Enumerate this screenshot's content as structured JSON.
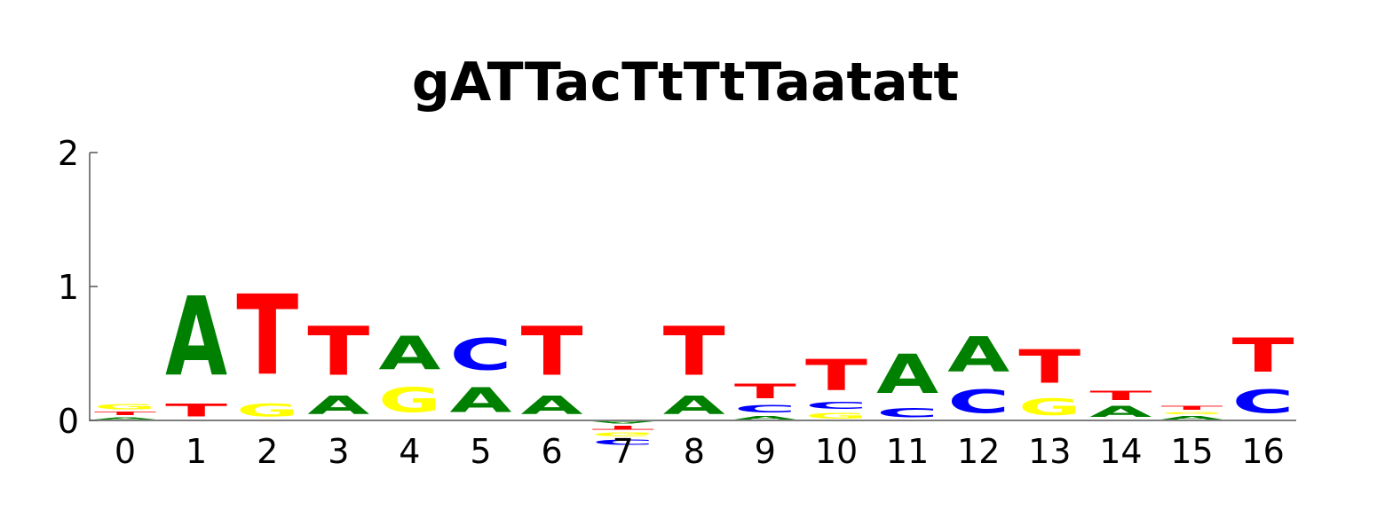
{
  "chart_data": {
    "type": "sequence-logo",
    "title": "gATTacTtTtTaatatt",
    "xlabel": "",
    "ylabel": "",
    "ylim": [
      0,
      2
    ],
    "yticks": [
      0,
      1,
      2
    ],
    "grid": false,
    "colors": {
      "A": "#008000",
      "C": "#0000ff",
      "G": "#ffff00",
      "T": "#ff0000"
    },
    "positions": [
      {
        "label": "0",
        "stack": [
          {
            "base": "A",
            "height": 0.03
          },
          {
            "base": "T",
            "height": 0.04
          },
          {
            "base": "G",
            "height": 0.06
          }
        ]
      },
      {
        "label": "1",
        "stack": [
          {
            "base": "T",
            "height": 0.15
          },
          {
            "base": "A",
            "height": 0.95
          }
        ]
      },
      {
        "label": "2",
        "stack": [
          {
            "base": "G",
            "height": 0.15
          },
          {
            "base": "T",
            "height": 0.96
          }
        ]
      },
      {
        "label": "3",
        "stack": [
          {
            "base": "A",
            "height": 0.22
          },
          {
            "base": "T",
            "height": 0.59
          }
        ]
      },
      {
        "label": "4",
        "stack": [
          {
            "base": "G",
            "height": 0.3
          },
          {
            "base": "A",
            "height": 0.4
          }
        ]
      },
      {
        "label": "5",
        "stack": [
          {
            "base": "A",
            "height": 0.3
          },
          {
            "base": "C",
            "height": 0.38
          }
        ]
      },
      {
        "label": "6",
        "stack": [
          {
            "base": "A",
            "height": 0.22
          },
          {
            "base": "T",
            "height": 0.59
          }
        ]
      },
      {
        "label": "7",
        "stack": [
          {
            "base": "A",
            "height": -0.03
          },
          {
            "base": "T",
            "height": -0.05
          },
          {
            "base": "G",
            "height": -0.05
          },
          {
            "base": "C",
            "height": -0.06
          }
        ]
      },
      {
        "label": "8",
        "stack": [
          {
            "base": "A",
            "height": 0.22
          },
          {
            "base": "T",
            "height": 0.59
          }
        ]
      },
      {
        "label": "9",
        "stack": [
          {
            "base": "A",
            "height": 0.04
          },
          {
            "base": "C",
            "height": 0.09
          },
          {
            "base": "T",
            "height": 0.17
          }
        ]
      },
      {
        "label": "10",
        "stack": [
          {
            "base": "G",
            "height": 0.07
          },
          {
            "base": "C",
            "height": 0.08
          },
          {
            "base": "T",
            "height": 0.37
          }
        ]
      },
      {
        "label": "11",
        "stack": [
          {
            "base": "C",
            "height": 0.11
          },
          {
            "base": "A",
            "height": 0.47
          }
        ]
      },
      {
        "label": "12",
        "stack": [
          {
            "base": "C",
            "height": 0.28
          },
          {
            "base": "A",
            "height": 0.42
          }
        ]
      },
      {
        "label": "13",
        "stack": [
          {
            "base": "G",
            "height": 0.2
          },
          {
            "base": "T",
            "height": 0.4
          }
        ]
      },
      {
        "label": "14",
        "stack": [
          {
            "base": "A",
            "height": 0.13
          },
          {
            "base": "T",
            "height": 0.11
          }
        ]
      },
      {
        "label": "15",
        "stack": [
          {
            "base": "A",
            "height": 0.04
          },
          {
            "base": "G",
            "height": 0.03
          },
          {
            "base": "T",
            "height": 0.05
          }
        ]
      },
      {
        "label": "16",
        "stack": [
          {
            "base": "C",
            "height": 0.28
          },
          {
            "base": "T",
            "height": 0.41
          }
        ]
      }
    ]
  }
}
